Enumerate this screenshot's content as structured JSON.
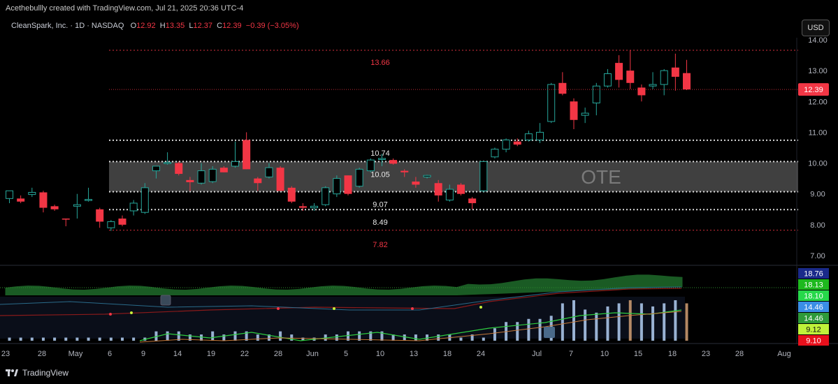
{
  "header": {
    "caption": "Acethebullly created with TradingView.com, Jul 21, 2025 20:36 UTC-4"
  },
  "legend": {
    "symbol": "CleanSpark, Inc. · 1D · NASDAQ",
    "o_label": "O",
    "o_value": "12.92",
    "h_label": "H",
    "h_value": "13.35",
    "l_label": "L",
    "l_value": "12.37",
    "c_label": "C",
    "c_value": "12.39",
    "change": "−0.39 (−3.05%)"
  },
  "currency_button": "USD",
  "footer": {
    "brand": "TradingView"
  },
  "colors": {
    "up": "#26a69a",
    "down": "#f23645",
    "background": "#000000",
    "level_red": "#f23645",
    "level_white": "#ffffff",
    "ote_zone": "#555555",
    "indicator_green": "#1e6b2a",
    "bar_blue": "#a8c4e8",
    "bar_tan": "#c89870"
  },
  "chart_data": {
    "type": "candlestick",
    "ylim": [
      6.9,
      14.25
    ],
    "y_ticks": [
      "14.00",
      "13.00",
      "12.00",
      "11.00",
      "10.00",
      "9.00",
      "8.00",
      "7.00"
    ],
    "x_ticks": [
      "23",
      "28",
      "May",
      "6",
      "9",
      "14",
      "19",
      "22",
      "28",
      "Jun",
      "5",
      "10",
      "13",
      "18",
      "24",
      "Jul",
      "7",
      "10",
      "15",
      "18",
      "23",
      "28",
      "Aug"
    ],
    "last_price": "12.39",
    "levels": [
      {
        "value": 13.66,
        "label": "13.66",
        "style": "red"
      },
      {
        "value": 10.74,
        "label": "10.74",
        "style": "white"
      },
      {
        "value": 10.05,
        "label": "10.05",
        "style": "white"
      },
      {
        "value": 9.07,
        "label": "9.07",
        "style": "white"
      },
      {
        "value": 8.49,
        "label": "8.49",
        "style": "white"
      },
      {
        "value": 7.82,
        "label": "7.82",
        "style": "red"
      }
    ],
    "zone": {
      "top": 10.05,
      "bottom": 9.07,
      "label": "OTE"
    },
    "candles": [
      {
        "o": 8.85,
        "h": 9.1,
        "l": 8.7,
        "c": 9.1
      },
      {
        "o": 8.85,
        "h": 8.95,
        "l": 8.7,
        "c": 8.75
      },
      {
        "o": 8.98,
        "h": 9.2,
        "l": 8.9,
        "c": 9.05
      },
      {
        "o": 9.05,
        "h": 9.1,
        "l": 8.4,
        "c": 8.55
      },
      {
        "o": 8.6,
        "h": 8.65,
        "l": 8.45,
        "c": 8.5
      },
      {
        "o": 8.2,
        "h": 8.2,
        "l": 7.95,
        "c": 8.18
      },
      {
        "o": 8.6,
        "h": 9.0,
        "l": 8.2,
        "c": 8.65
      },
      {
        "o": 8.8,
        "h": 9.2,
        "l": 8.75,
        "c": 8.82
      },
      {
        "o": 8.5,
        "h": 8.55,
        "l": 7.9,
        "c": 8.1
      },
      {
        "o": 7.9,
        "h": 8.15,
        "l": 7.8,
        "c": 8.1
      },
      {
        "o": 8.2,
        "h": 8.3,
        "l": 7.95,
        "c": 8.0
      },
      {
        "o": 8.45,
        "h": 8.8,
        "l": 8.3,
        "c": 8.7
      },
      {
        "o": 8.4,
        "h": 9.35,
        "l": 8.35,
        "c": 9.2
      },
      {
        "o": 9.75,
        "h": 9.9,
        "l": 9.5,
        "c": 9.9
      },
      {
        "o": 10.0,
        "h": 10.35,
        "l": 9.95,
        "c": 10.02
      },
      {
        "o": 10.0,
        "h": 10.05,
        "l": 9.6,
        "c": 9.65
      },
      {
        "o": 9.45,
        "h": 9.55,
        "l": 9.1,
        "c": 9.38
      },
      {
        "o": 9.35,
        "h": 10.0,
        "l": 9.3,
        "c": 9.75
      },
      {
        "o": 9.4,
        "h": 9.9,
        "l": 9.35,
        "c": 9.8
      },
      {
        "o": 9.85,
        "h": 9.9,
        "l": 9.7,
        "c": 9.7
      },
      {
        "o": 9.9,
        "h": 10.7,
        "l": 9.85,
        "c": 10.05
      },
      {
        "o": 10.75,
        "h": 11.0,
        "l": 9.8,
        "c": 9.8
      },
      {
        "o": 9.5,
        "h": 9.55,
        "l": 9.1,
        "c": 9.35
      },
      {
        "o": 9.55,
        "h": 10.0,
        "l": 9.5,
        "c": 9.85
      },
      {
        "o": 9.85,
        "h": 9.9,
        "l": 9.1,
        "c": 9.1
      },
      {
        "o": 9.2,
        "h": 9.25,
        "l": 8.7,
        "c": 8.75
      },
      {
        "o": 8.6,
        "h": 8.7,
        "l": 8.45,
        "c": 8.55
      },
      {
        "o": 8.55,
        "h": 8.7,
        "l": 8.45,
        "c": 8.6
      },
      {
        "o": 8.65,
        "h": 9.25,
        "l": 8.6,
        "c": 9.2
      },
      {
        "o": 9.0,
        "h": 9.6,
        "l": 8.9,
        "c": 9.5
      },
      {
        "o": 9.6,
        "h": 9.6,
        "l": 8.95,
        "c": 9.0
      },
      {
        "o": 9.25,
        "h": 9.85,
        "l": 9.2,
        "c": 9.8
      },
      {
        "o": 9.75,
        "h": 10.15,
        "l": 9.7,
        "c": 10.1
      },
      {
        "o": 10.12,
        "h": 10.3,
        "l": 9.9,
        "c": 10.15
      },
      {
        "o": 10.1,
        "h": 10.15,
        "l": 9.95,
        "c": 9.98
      },
      {
        "o": 9.75,
        "h": 9.8,
        "l": 9.55,
        "c": 9.7
      },
      {
        "o": 9.4,
        "h": 9.55,
        "l": 9.2,
        "c": 9.3
      },
      {
        "o": 9.55,
        "h": 9.62,
        "l": 9.5,
        "c": 9.6
      },
      {
        "o": 9.35,
        "h": 9.45,
        "l": 8.75,
        "c": 8.95
      },
      {
        "o": 8.8,
        "h": 9.3,
        "l": 8.75,
        "c": 9.15
      },
      {
        "o": 9.3,
        "h": 9.35,
        "l": 8.95,
        "c": 9.0
      },
      {
        "o": 8.85,
        "h": 8.9,
        "l": 8.5,
        "c": 8.7
      },
      {
        "o": 9.1,
        "h": 10.05,
        "l": 9.05,
        "c": 10.05
      },
      {
        "o": 10.2,
        "h": 10.5,
        "l": 10.15,
        "c": 10.45
      },
      {
        "o": 10.45,
        "h": 10.8,
        "l": 10.35,
        "c": 10.75
      },
      {
        "o": 10.7,
        "h": 10.8,
        "l": 10.55,
        "c": 10.6
      },
      {
        "o": 10.75,
        "h": 11.05,
        "l": 10.7,
        "c": 10.95
      },
      {
        "o": 10.75,
        "h": 11.3,
        "l": 10.65,
        "c": 11.0
      },
      {
        "o": 11.35,
        "h": 12.6,
        "l": 11.3,
        "c": 12.55
      },
      {
        "o": 12.6,
        "h": 12.95,
        "l": 12.2,
        "c": 12.25
      },
      {
        "o": 12.0,
        "h": 12.1,
        "l": 11.1,
        "c": 11.4
      },
      {
        "o": 11.55,
        "h": 11.8,
        "l": 11.3,
        "c": 11.62
      },
      {
        "o": 11.95,
        "h": 12.6,
        "l": 11.55,
        "c": 12.5
      },
      {
        "o": 12.5,
        "h": 13.05,
        "l": 12.45,
        "c": 12.9
      },
      {
        "o": 13.25,
        "h": 13.5,
        "l": 12.45,
        "c": 12.7
      },
      {
        "o": 13.0,
        "h": 13.66,
        "l": 12.4,
        "c": 12.6
      },
      {
        "o": 12.45,
        "h": 12.55,
        "l": 12.0,
        "c": 12.2
      },
      {
        "o": 12.5,
        "h": 12.95,
        "l": 12.4,
        "c": 12.55
      },
      {
        "o": 12.55,
        "h": 13.05,
        "l": 12.2,
        "c": 13.0
      },
      {
        "o": 13.1,
        "h": 13.55,
        "l": 12.35,
        "c": 12.8
      },
      {
        "o": 12.92,
        "h": 13.35,
        "l": 12.37,
        "c": 12.39
      }
    ],
    "indicator": {
      "panel_labels": [
        "18.76",
        "18.13",
        "18.10",
        "14.46",
        "14.46",
        "9.12",
        "9.10"
      ],
      "panel_label_colors": [
        "#1a2a8a",
        "#1eb91e",
        "#26d84a",
        "#3a8ee6",
        "#2e9a3a",
        "#bff23a",
        "#e8101c"
      ],
      "volume": [
        1,
        1,
        1,
        1,
        1,
        1,
        1,
        1,
        1,
        1,
        1,
        1,
        1,
        3,
        3,
        3,
        2,
        2,
        3,
        2,
        3,
        3,
        2,
        2,
        3,
        2,
        1,
        1,
        2,
        2,
        3,
        3,
        3,
        3,
        2,
        2,
        2,
        2,
        2,
        2,
        1,
        2,
        1,
        4,
        6,
        6,
        7,
        7,
        8,
        12,
        13,
        10,
        9,
        11,
        12,
        13,
        12,
        11,
        12,
        13,
        12
      ],
      "volume_tan_index": [
        55,
        60
      ]
    }
  }
}
